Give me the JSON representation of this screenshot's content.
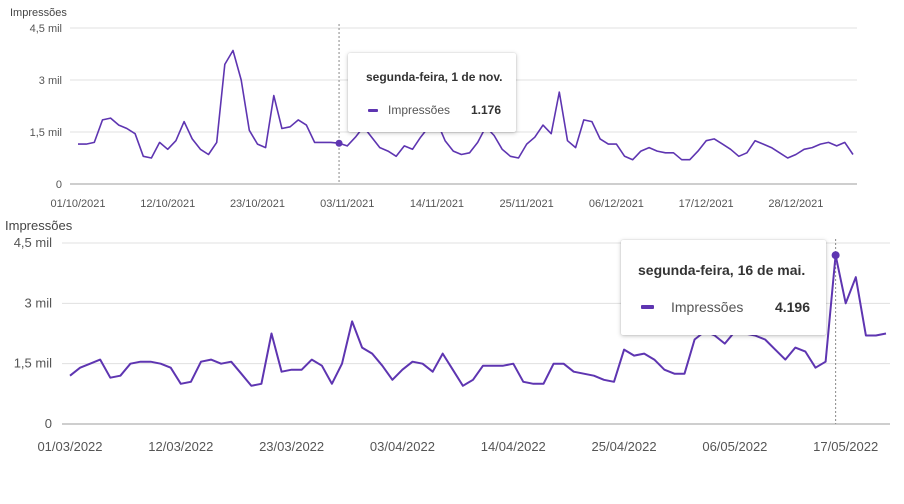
{
  "colors": {
    "line": "#5e35b1",
    "grid": "#e0e0e0",
    "baseline": "#9e9e9e",
    "text": "#555555"
  },
  "chart_data": [
    {
      "type": "line",
      "ylabel": "Impressões",
      "ylim": [
        0,
        4500
      ],
      "yticks": [
        0,
        1500,
        3000,
        4500
      ],
      "ytick_labels": [
        "0",
        "1,5 mil",
        "3 mil",
        "4,5 mil"
      ],
      "xtick_labels": [
        "01/10/2021",
        "12/10/2021",
        "23/10/2021",
        "03/11/2021",
        "14/11/2021",
        "25/11/2021",
        "06/12/2021",
        "17/12/2021",
        "28/12/2021"
      ],
      "x_start": "01/10/2021",
      "x_end": "31/12/2021",
      "series": [
        {
          "name": "Impressões",
          "values": [
            1150,
            1150,
            1200,
            1850,
            1900,
            1700,
            1600,
            1450,
            800,
            750,
            1200,
            1000,
            1250,
            1800,
            1300,
            1000,
            850,
            1200,
            3450,
            3850,
            3000,
            1550,
            1150,
            1050,
            2550,
            1600,
            1650,
            1850,
            1700,
            1200,
            1200,
            1200,
            1176,
            1100,
            1350,
            1650,
            1350,
            1050,
            950,
            800,
            1100,
            1000,
            1350,
            1650,
            1800,
            1250,
            950,
            850,
            900,
            1200,
            1650,
            1400,
            1000,
            800,
            750,
            1150,
            1350,
            1700,
            1450,
            2650,
            1250,
            1050,
            1850,
            1800,
            1300,
            1150,
            1150,
            800,
            700,
            950,
            1050,
            950,
            900,
            900,
            700,
            700,
            950,
            1250,
            1300,
            1150,
            1000,
            800,
            900,
            1250,
            1150,
            1050,
            900,
            750,
            850,
            1000,
            1050,
            1150,
            1200,
            1100,
            1200,
            850
          ]
        }
      ],
      "tooltip": {
        "title": "segunda-feira, 1 de nov.",
        "series_label": "Impressões",
        "value": "1.176"
      }
    },
    {
      "type": "line",
      "ylabel": "Impressões",
      "ylim": [
        0,
        4500
      ],
      "yticks": [
        0,
        1500,
        3000,
        4500
      ],
      "ytick_labels": [
        "0",
        "1,5 mil",
        "3 mil",
        "4,5 mil"
      ],
      "xtick_labels": [
        "01/03/2022",
        "12/03/2022",
        "23/03/2022",
        "03/04/2022",
        "14/04/2022",
        "25/04/2022",
        "06/05/2022",
        "17/05/2022"
      ],
      "x_start": "01/03/2022",
      "x_end": "22/05/2022",
      "series": [
        {
          "name": "Impressões",
          "values": [
            1200,
            1400,
            1500,
            1600,
            1150,
            1200,
            1500,
            1550,
            1550,
            1500,
            1400,
            1000,
            1050,
            1550,
            1600,
            1500,
            1550,
            1250,
            950,
            1000,
            2250,
            1300,
            1350,
            1350,
            1600,
            1450,
            1000,
            1500,
            2550,
            1900,
            1750,
            1450,
            1100,
            1350,
            1550,
            1500,
            1300,
            1750,
            1350,
            950,
            1100,
            1450,
            1450,
            1450,
            1500,
            1050,
            1000,
            1000,
            1500,
            1500,
            1300,
            1250,
            1200,
            1100,
            1050,
            1850,
            1700,
            1750,
            1600,
            1350,
            1250,
            1250,
            2100,
            2300,
            2200,
            2000,
            2300,
            2250,
            2200,
            2100,
            1850,
            1600,
            1900,
            1800,
            1400,
            1550,
            4196,
            3000,
            3650,
            2200,
            2200,
            2250
          ]
        }
      ],
      "tooltip": {
        "title": "segunda-feira, 16 de mai.",
        "series_label": "Impressões",
        "value": "4.196"
      }
    }
  ]
}
